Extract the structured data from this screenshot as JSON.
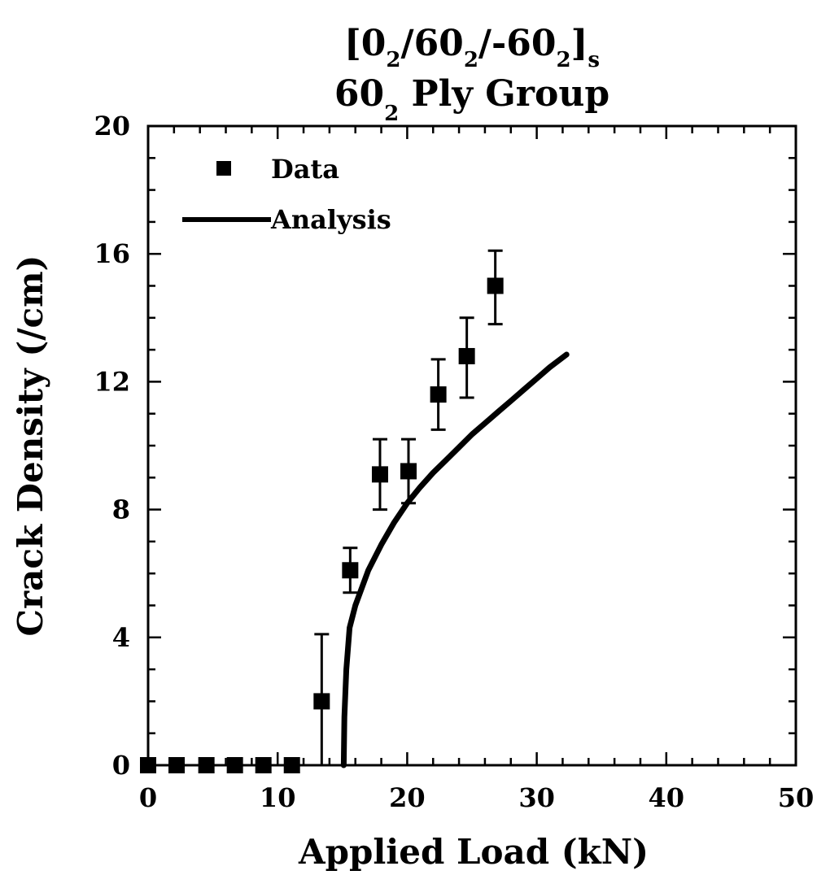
{
  "chart_data": {
    "type": "scatter",
    "title": {
      "line1": {
        "open": "[0",
        "s1": "2",
        "p1": "/60",
        "s2": "2",
        "p2": "/-60",
        "s3": "2",
        "close": "]",
        "s4": "s"
      },
      "line2": {
        "a": "60",
        "s": "2",
        "b": " Ply Group"
      }
    },
    "xlabel": "Applied Load (kN)",
    "ylabel": "Crack Density (/cm)",
    "xlim": [
      0,
      50
    ],
    "ylim": [
      0,
      20
    ],
    "xticks": [
      "0",
      "10",
      "20",
      "30",
      "40",
      "50"
    ],
    "yticks": [
      "0",
      "4",
      "8",
      "12",
      "16",
      "20"
    ],
    "legend": {
      "placement": "top-left",
      "data_label": "Data",
      "analysis_label": "Analysis"
    },
    "colors": {
      "ink": "#000000",
      "background": "#ffffff"
    },
    "series": [
      {
        "name": "Data",
        "kind": "markers-with-error-bars",
        "points": [
          {
            "x": 0,
            "y": 0
          },
          {
            "x": 2.2,
            "y": 0
          },
          {
            "x": 4.5,
            "y": 0
          },
          {
            "x": 6.7,
            "y": 0
          },
          {
            "x": 8.9,
            "y": 0
          },
          {
            "x": 11.1,
            "y": 0
          },
          {
            "x": 13.4,
            "y": 2.0,
            "err_low": 2.0,
            "err_high": 2.1
          },
          {
            "x": 15.6,
            "y": 6.1,
            "err_low": 0.7,
            "err_high": 0.7
          },
          {
            "x": 17.9,
            "y": 9.1,
            "err_low": 1.1,
            "err_high": 1.1
          },
          {
            "x": 20.1,
            "y": 9.2,
            "err_low": 1.0,
            "err_high": 1.0
          },
          {
            "x": 22.4,
            "y": 11.6,
            "err_low": 1.1,
            "err_high": 1.1
          },
          {
            "x": 24.6,
            "y": 12.8,
            "err_low": 1.3,
            "err_high": 1.2
          },
          {
            "x": 26.8,
            "y": 15.0,
            "err_low": 1.2,
            "err_high": 1.1
          }
        ]
      },
      {
        "name": "Analysis",
        "kind": "line",
        "points": [
          {
            "x": 15.1,
            "y": 0
          },
          {
            "x": 15.15,
            "y": 1.5
          },
          {
            "x": 15.3,
            "y": 3.0
          },
          {
            "x": 15.55,
            "y": 4.3
          },
          {
            "x": 16.0,
            "y": 5.0
          },
          {
            "x": 17.0,
            "y": 6.1
          },
          {
            "x": 18.0,
            "y": 6.9
          },
          {
            "x": 19.0,
            "y": 7.6
          },
          {
            "x": 20.0,
            "y": 8.2
          },
          {
            "x": 21.0,
            "y": 8.7
          },
          {
            "x": 22.0,
            "y": 9.15
          },
          {
            "x": 23.0,
            "y": 9.55
          },
          {
            "x": 24.0,
            "y": 9.95
          },
          {
            "x": 25.0,
            "y": 10.35
          },
          {
            "x": 26.0,
            "y": 10.7
          },
          {
            "x": 27.0,
            "y": 11.05
          },
          {
            "x": 28.0,
            "y": 11.4
          },
          {
            "x": 29.0,
            "y": 11.75
          },
          {
            "x": 30.0,
            "y": 12.1
          },
          {
            "x": 31.0,
            "y": 12.45
          },
          {
            "x": 32.3,
            "y": 12.85
          }
        ]
      }
    ]
  }
}
